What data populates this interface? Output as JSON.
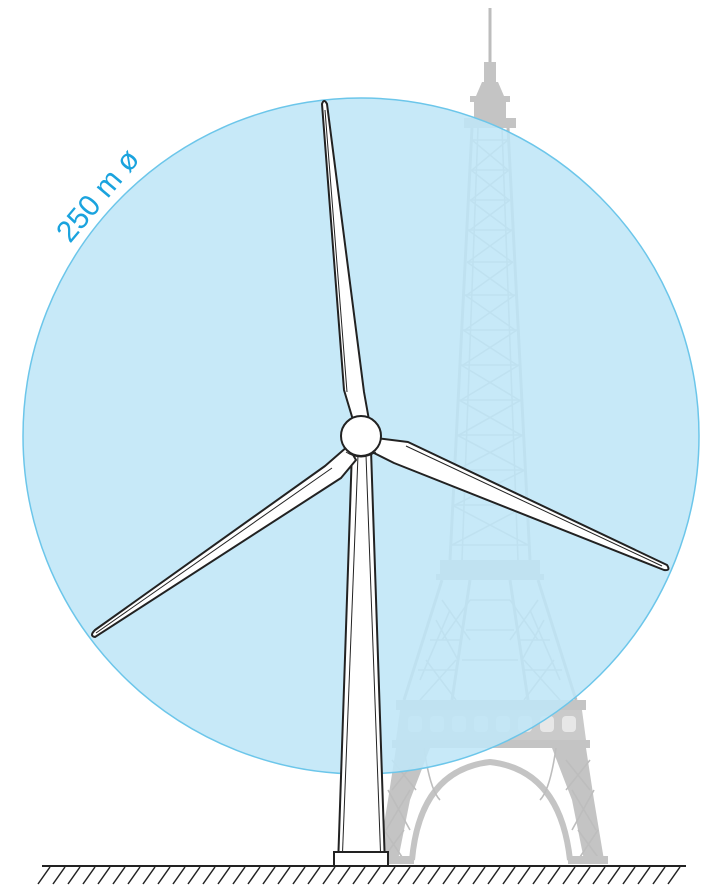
{
  "diameter_label": "250 m ø",
  "colors": {
    "rotor_disc": "#bfe6f7",
    "rotor_edge": "#6cc6ea",
    "label": "#1aa3de",
    "eiffel_tower": "#c4c4c4",
    "turbine_outline": "#222222"
  },
  "icons": [
    "wind-turbine-icon",
    "eiffel-tower-icon"
  ]
}
